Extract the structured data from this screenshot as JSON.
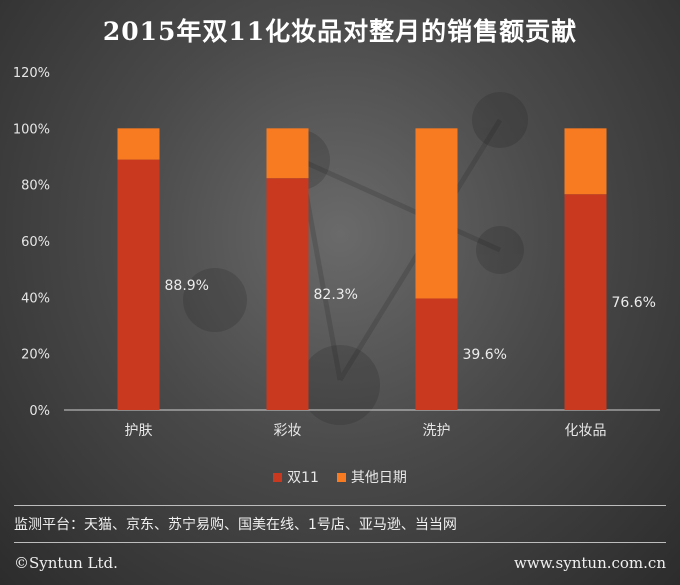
{
  "page": {
    "title": "2015年双11化妆品对整月的销售额贡献",
    "source": "监测平台：天猫、京东、苏宁易购、国美在线、1号店、亚马逊、当当网",
    "copyright": "©Syntun Ltd.",
    "website": "www.syntun.com.cn"
  },
  "legend": [
    {
      "name": "双11",
      "color": "#c8391f"
    },
    {
      "name": "其他日期",
      "color": "#f97b21"
    }
  ],
  "chart_data": {
    "type": "bar",
    "stacked": true,
    "title": "2015年双11化妆品对整月的销售额贡献",
    "categories": [
      "护肤",
      "彩妆",
      "洗护",
      "化妆品"
    ],
    "series": [
      {
        "name": "双11",
        "values": [
          88.9,
          82.3,
          39.6,
          76.6
        ],
        "color": "#c8391f"
      },
      {
        "name": "其他日期",
        "values": [
          11.1,
          17.7,
          60.4,
          23.4
        ],
        "color": "#f97b21"
      }
    ],
    "data_labels": [
      "88.9%",
      "82.3%",
      "39.6%",
      "76.6%"
    ],
    "ylim": [
      0,
      120
    ],
    "yticks": [
      "0%",
      "20%",
      "40%",
      "60%",
      "80%",
      "100%",
      "120%"
    ],
    "xlabel": "",
    "ylabel": "",
    "grid": false,
    "legend_position": "bottom"
  }
}
